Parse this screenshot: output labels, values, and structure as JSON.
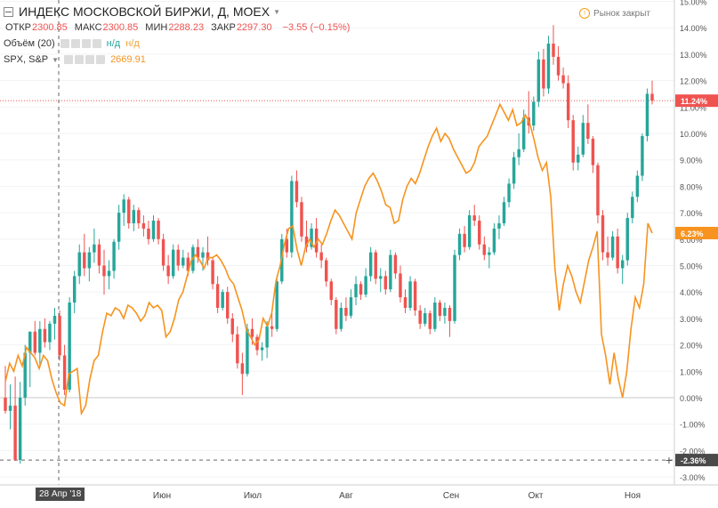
{
  "header": {
    "title": "ИНДЕКС МОСКОВСКОЙ БИРЖИ, Д, MOEX",
    "ohlc": [
      {
        "label": "ОТКР",
        "value": "2300.85"
      },
      {
        "label": "МАКС",
        "value": "2300.85"
      },
      {
        "label": "МИН",
        "value": "2288.23"
      },
      {
        "label": "ЗАКР",
        "value": "2297.30"
      }
    ],
    "change": "−3.55 (−0.15%)",
    "volume_label": "Объём (20)",
    "volume_na1": "н/д",
    "volume_na2": "н/д",
    "compare_label": "SPX, S&P",
    "compare_value": "2669.91",
    "market_status": "Рынок закрыт"
  },
  "colors": {
    "up": "#26a69a",
    "down": "#ef5350",
    "compare": "#f7931e",
    "badge_main": "#ef5350",
    "badge_compare": "#f7931e",
    "badge_cross": "#4a4a4a"
  },
  "chart_data": {
    "type": "line",
    "y_axis": {
      "unit": "%",
      "scale": "percent",
      "ticks": [
        "15.00%",
        "14.00%",
        "13.00%",
        "12.00%",
        "11.00%",
        "10.00%",
        "9.00%",
        "8.00%",
        "7.00%",
        "6.00%",
        "5.00%",
        "4.00%",
        "3.00%",
        "2.00%",
        "1.00%",
        "0.00%",
        "-1.00%",
        "-2.00%",
        "-3.00%"
      ],
      "ylim": [
        -3.3,
        15.1
      ]
    },
    "x_axis": {
      "ticks": [
        "Июн",
        "Июл",
        "Авг",
        "Сен",
        "Окт",
        "Ноя"
      ],
      "crosshair_label": "28 Апр '18"
    },
    "price_badges": {
      "main": "11.24%",
      "compare": "6.23%",
      "crosshair": "-2.36%"
    },
    "series": [
      {
        "name": "ИНДЕКС МОСКОВСКОЙ БИРЖИ",
        "kind": "candles_percent",
        "candles": [
          [
            0.0,
            1.2,
            -0.6,
            -0.5
          ],
          [
            -0.5,
            0.5,
            -1.2,
            -0.3
          ],
          [
            -0.3,
            0.8,
            -2.4,
            -2.36
          ],
          [
            -2.36,
            0.6,
            -2.5,
            0.0
          ],
          [
            0.0,
            2.0,
            -0.3,
            1.7
          ],
          [
            1.7,
            2.5,
            0.4,
            2.5
          ],
          [
            2.5,
            2.9,
            1.6,
            1.7
          ],
          [
            1.7,
            2.9,
            1.2,
            2.6
          ],
          [
            2.6,
            3.0,
            1.9,
            2.1
          ],
          [
            2.1,
            2.9,
            1.8,
            2.8
          ],
          [
            2.8,
            3.4,
            2.2,
            3.1
          ],
          [
            3.1,
            3.3,
            1.4,
            1.6
          ],
          [
            1.6,
            2.0,
            0.1,
            0.3
          ],
          [
            0.3,
            3.8,
            0.2,
            3.6
          ],
          [
            3.6,
            4.8,
            3.2,
            4.6
          ],
          [
            4.6,
            5.8,
            4.3,
            5.5
          ],
          [
            5.5,
            6.2,
            4.6,
            4.9
          ],
          [
            4.9,
            5.7,
            4.4,
            5.5
          ],
          [
            5.5,
            6.4,
            5.1,
            5.8
          ],
          [
            5.8,
            6.0,
            4.7,
            5.0
          ],
          [
            5.0,
            5.6,
            3.9,
            4.6
          ],
          [
            4.6,
            5.2,
            4.1,
            4.8
          ],
          [
            4.8,
            6.0,
            4.5,
            5.9
          ],
          [
            5.9,
            7.3,
            5.6,
            7.0
          ],
          [
            7.0,
            7.7,
            6.5,
            7.5
          ],
          [
            7.5,
            7.6,
            6.4,
            6.6
          ],
          [
            6.6,
            7.3,
            6.3,
            7.1
          ],
          [
            7.1,
            7.2,
            6.4,
            6.6
          ],
          [
            6.6,
            6.9,
            6.1,
            6.4
          ],
          [
            6.4,
            6.7,
            5.8,
            6.0
          ],
          [
            6.0,
            6.9,
            5.9,
            6.7
          ],
          [
            6.7,
            6.8,
            5.8,
            6.0
          ],
          [
            6.0,
            6.2,
            4.8,
            5.0
          ],
          [
            5.0,
            5.4,
            4.3,
            4.6
          ],
          [
            4.6,
            5.8,
            4.5,
            5.6
          ],
          [
            5.6,
            5.8,
            4.8,
            5.0
          ],
          [
            5.0,
            5.6,
            4.9,
            5.3
          ],
          [
            5.3,
            5.5,
            4.6,
            4.8
          ],
          [
            4.8,
            5.8,
            4.7,
            5.7
          ],
          [
            5.7,
            6.0,
            5.1,
            5.3
          ],
          [
            5.3,
            5.7,
            4.8,
            5.5
          ],
          [
            5.5,
            6.1,
            5.0,
            5.2
          ],
          [
            5.2,
            5.3,
            4.1,
            4.3
          ],
          [
            4.3,
            4.6,
            3.2,
            3.4
          ],
          [
            3.4,
            4.1,
            3.3,
            4.0
          ],
          [
            4.0,
            4.2,
            2.8,
            3.0
          ],
          [
            3.0,
            3.2,
            2.1,
            2.4
          ],
          [
            2.4,
            2.7,
            1.1,
            1.3
          ],
          [
            1.3,
            1.7,
            0.1,
            0.9
          ],
          [
            0.9,
            2.8,
            0.8,
            2.6
          ],
          [
            2.6,
            3.0,
            2.0,
            2.3
          ],
          [
            2.3,
            2.4,
            1.6,
            1.8
          ],
          [
            1.8,
            2.1,
            1.4,
            1.9
          ],
          [
            1.9,
            2.9,
            1.5,
            2.7
          ],
          [
            2.7,
            3.2,
            2.3,
            2.6
          ],
          [
            2.6,
            4.6,
            2.5,
            4.4
          ],
          [
            4.4,
            6.2,
            4.3,
            6.0
          ],
          [
            6.0,
            6.4,
            5.3,
            5.5
          ],
          [
            5.5,
            8.4,
            5.3,
            8.2
          ],
          [
            8.2,
            8.6,
            7.2,
            7.4
          ],
          [
            7.4,
            7.6,
            5.9,
            6.1
          ],
          [
            6.1,
            6.7,
            5.5,
            5.7
          ],
          [
            5.7,
            6.6,
            5.6,
            6.4
          ],
          [
            6.4,
            6.8,
            5.3,
            5.5
          ],
          [
            5.5,
            5.8,
            4.9,
            5.2
          ],
          [
            5.2,
            5.3,
            4.2,
            4.4
          ],
          [
            4.4,
            4.5,
            3.5,
            3.7
          ],
          [
            3.7,
            3.8,
            2.4,
            2.6
          ],
          [
            2.6,
            3.6,
            2.5,
            3.4
          ],
          [
            3.4,
            3.8,
            2.9,
            3.1
          ],
          [
            3.1,
            4.1,
            3.0,
            3.8
          ],
          [
            3.8,
            4.6,
            3.5,
            4.3
          ],
          [
            4.3,
            4.4,
            3.7,
            3.9
          ],
          [
            3.9,
            4.9,
            3.8,
            4.6
          ],
          [
            4.6,
            5.7,
            4.4,
            5.5
          ],
          [
            5.5,
            5.6,
            4.3,
            4.5
          ],
          [
            4.5,
            4.9,
            4.0,
            4.6
          ],
          [
            4.6,
            4.8,
            3.9,
            4.1
          ],
          [
            4.1,
            5.6,
            4.0,
            5.4
          ],
          [
            5.4,
            5.5,
            4.5,
            4.7
          ],
          [
            4.7,
            5.0,
            3.6,
            3.8
          ],
          [
            3.8,
            4.1,
            3.2,
            3.4
          ],
          [
            3.4,
            4.6,
            3.3,
            4.4
          ],
          [
            4.4,
            4.5,
            3.1,
            3.3
          ],
          [
            3.3,
            3.5,
            2.6,
            2.8
          ],
          [
            2.8,
            3.4,
            2.7,
            3.2
          ],
          [
            3.2,
            3.3,
            2.4,
            2.6
          ],
          [
            2.6,
            3.8,
            2.5,
            3.6
          ],
          [
            3.6,
            3.7,
            2.9,
            3.1
          ],
          [
            3.1,
            3.6,
            2.8,
            3.4
          ],
          [
            3.4,
            3.5,
            2.3,
            2.9
          ],
          [
            2.9,
            5.6,
            2.8,
            5.4
          ],
          [
            5.4,
            6.4,
            5.2,
            6.2
          ],
          [
            6.2,
            6.5,
            5.5,
            5.7
          ],
          [
            5.7,
            7.1,
            5.6,
            6.9
          ],
          [
            6.9,
            7.3,
            6.5,
            6.7
          ],
          [
            6.7,
            6.9,
            5.6,
            5.8
          ],
          [
            5.8,
            6.1,
            5.2,
            5.4
          ],
          [
            5.4,
            5.7,
            4.9,
            5.5
          ],
          [
            5.5,
            6.6,
            5.4,
            6.4
          ],
          [
            6.4,
            6.9,
            6.0,
            6.6
          ],
          [
            6.6,
            7.6,
            6.5,
            7.4
          ],
          [
            7.4,
            8.3,
            7.2,
            8.1
          ],
          [
            8.1,
            9.3,
            7.9,
            9.1
          ],
          [
            9.1,
            10.0,
            8.8,
            9.4
          ],
          [
            9.4,
            10.9,
            9.3,
            10.6
          ],
          [
            10.6,
            11.6,
            10.0,
            10.3
          ],
          [
            10.3,
            11.4,
            10.1,
            11.2
          ],
          [
            11.2,
            13.1,
            11.0,
            12.8
          ],
          [
            12.8,
            13.2,
            11.4,
            11.7
          ],
          [
            11.7,
            13.7,
            11.5,
            13.4
          ],
          [
            13.4,
            14.1,
            12.6,
            12.9
          ],
          [
            12.9,
            13.3,
            12.0,
            12.2
          ],
          [
            12.2,
            12.5,
            11.7,
            11.9
          ],
          [
            11.9,
            12.2,
            10.2,
            10.5
          ],
          [
            10.5,
            10.7,
            8.6,
            8.9
          ],
          [
            8.9,
            9.5,
            8.6,
            9.2
          ],
          [
            9.2,
            10.7,
            9.1,
            10.4
          ],
          [
            10.4,
            11.1,
            9.6,
            9.8
          ],
          [
            9.8,
            9.9,
            8.5,
            8.8
          ],
          [
            8.8,
            8.9,
            6.6,
            6.9
          ],
          [
            6.9,
            7.1,
            5.2,
            5.5
          ],
          [
            5.5,
            6.1,
            5.0,
            5.3
          ],
          [
            5.3,
            6.3,
            5.2,
            6.1
          ],
          [
            6.1,
            6.4,
            4.7,
            4.9
          ],
          [
            4.9,
            5.4,
            4.3,
            5.2
          ],
          [
            5.2,
            7.0,
            5.0,
            6.8
          ],
          [
            6.8,
            7.8,
            6.6,
            7.6
          ],
          [
            7.6,
            8.6,
            7.4,
            8.4
          ],
          [
            8.4,
            10.0,
            8.2,
            9.9
          ],
          [
            9.9,
            11.7,
            9.7,
            11.5
          ],
          [
            11.5,
            12.0,
            11.1,
            11.24
          ]
        ]
      },
      {
        "name": "SPX, S&P",
        "kind": "line_percent",
        "values": [
          0.6,
          1.3,
          1.0,
          1.6,
          1.2,
          1.9,
          1.7,
          1.5,
          1.1,
          1.6,
          1.4,
          0.7,
          0.2,
          -0.2,
          -0.3,
          0.9,
          1.0,
          1.1,
          -0.6,
          -0.3,
          0.7,
          1.4,
          1.6,
          2.5,
          3.2,
          3.1,
          3.4,
          3.3,
          3.0,
          3.5,
          3.4,
          3.2,
          2.9,
          3.1,
          3.6,
          3.4,
          3.5,
          3.3,
          2.3,
          2.5,
          3.0,
          3.7,
          4.0,
          4.6,
          5.2,
          5.4,
          5.2,
          4.9,
          5.3,
          5.3,
          5.4,
          5.2,
          4.9,
          4.5,
          4.3,
          3.8,
          3.3,
          2.6,
          2.3,
          2.0,
          2.2,
          3.0,
          2.7,
          3.2,
          4.4,
          5.0,
          5.8,
          6.4,
          6.5,
          5.6,
          5.0,
          5.7,
          6.0,
          5.7,
          6.0,
          5.8,
          6.2,
          6.7,
          7.1,
          6.9,
          6.6,
          6.3,
          6.0,
          7.0,
          7.5,
          8.0,
          8.3,
          8.5,
          8.2,
          7.8,
          7.3,
          7.2,
          6.6,
          6.7,
          7.5,
          8.0,
          8.3,
          8.1,
          8.5,
          9.0,
          9.5,
          9.9,
          10.2,
          9.7,
          10.0,
          9.8,
          9.4,
          9.1,
          8.8,
          8.5,
          8.6,
          8.9,
          9.5,
          9.7,
          9.9,
          10.3,
          10.7,
          11.1,
          10.8,
          10.5,
          10.9,
          10.3,
          10.4,
          10.7,
          10.4,
          9.8,
          9.1,
          8.6,
          8.9,
          7.6,
          4.9,
          3.3,
          4.3,
          5.0,
          4.6,
          4.0,
          3.6,
          4.4,
          5.2,
          5.7,
          6.3,
          2.4,
          1.6,
          0.5,
          1.7,
          0.7,
          0.0,
          1.0,
          2.6,
          3.8,
          3.4,
          4.3,
          6.6,
          6.23
        ]
      }
    ],
    "crosshair": {
      "value": -2.36,
      "candle_index": 2
    }
  }
}
